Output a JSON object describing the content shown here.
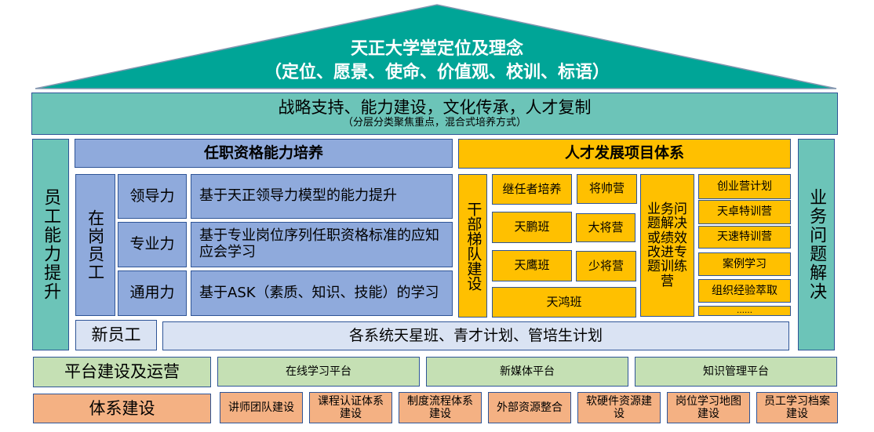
{
  "colors": {
    "roof": "#00a597",
    "band": "#6cc4b8",
    "blue": "#8faadc",
    "light_blue": "#dae3f3",
    "yellow": "#ffc000",
    "green": "#c5e0b4",
    "orange": "#f4b183",
    "border": "#2f5597"
  },
  "roof": {
    "title": "天正大学堂定位及理念",
    "subtitle": "（定位、愿景、使命、价值观、校训、标语）"
  },
  "band": {
    "title": "战略支持、能力建设，文化传承，人才复制",
    "subtitle": "（分层分类聚焦重点，混合式培养方式）"
  },
  "left_pillar": "员工能力提升",
  "right_pillar": "业务问题解决",
  "qualification": {
    "header": "任职资格能力培养",
    "group": "在岗员工",
    "rows": [
      {
        "label": "领导力",
        "desc": "基于天正领导力模型的能力提升"
      },
      {
        "label": "专业力",
        "desc": "基于专业岗位序列任职资格标准的应知应会学习"
      },
      {
        "label": "通用力",
        "desc": "基于ASK（素质、知识、技能）的学习"
      }
    ]
  },
  "new_staff": {
    "label": "新员工",
    "desc": "各系统天星班、青才计划、管培生计划"
  },
  "talent": {
    "header": "人才发展项目体系",
    "cadre": "干部梯队建设",
    "programs": [
      "继任者培养",
      "将帅营",
      "天鹏班",
      "大将营",
      "天鹰班",
      "少将营",
      "天鸿班"
    ],
    "business": "业务问题解决或绩效改进专题训练营",
    "right_list": [
      "创业营计划",
      "天卓特训营",
      "天速特训营",
      "案例学习",
      "组织经验萃取",
      "……"
    ]
  },
  "platform": {
    "label": "平台建设及运营",
    "items": [
      "在线学习平台",
      "新媒体平台",
      "知识管理平台"
    ]
  },
  "system": {
    "label": "体系建设",
    "items": [
      "讲师团队建设",
      "课程认证体系建设",
      "制度流程体系建设",
      "外部资源整合",
      "软硬件资源建设",
      "岗位学习地图建设",
      "员工学习档案建设"
    ]
  }
}
